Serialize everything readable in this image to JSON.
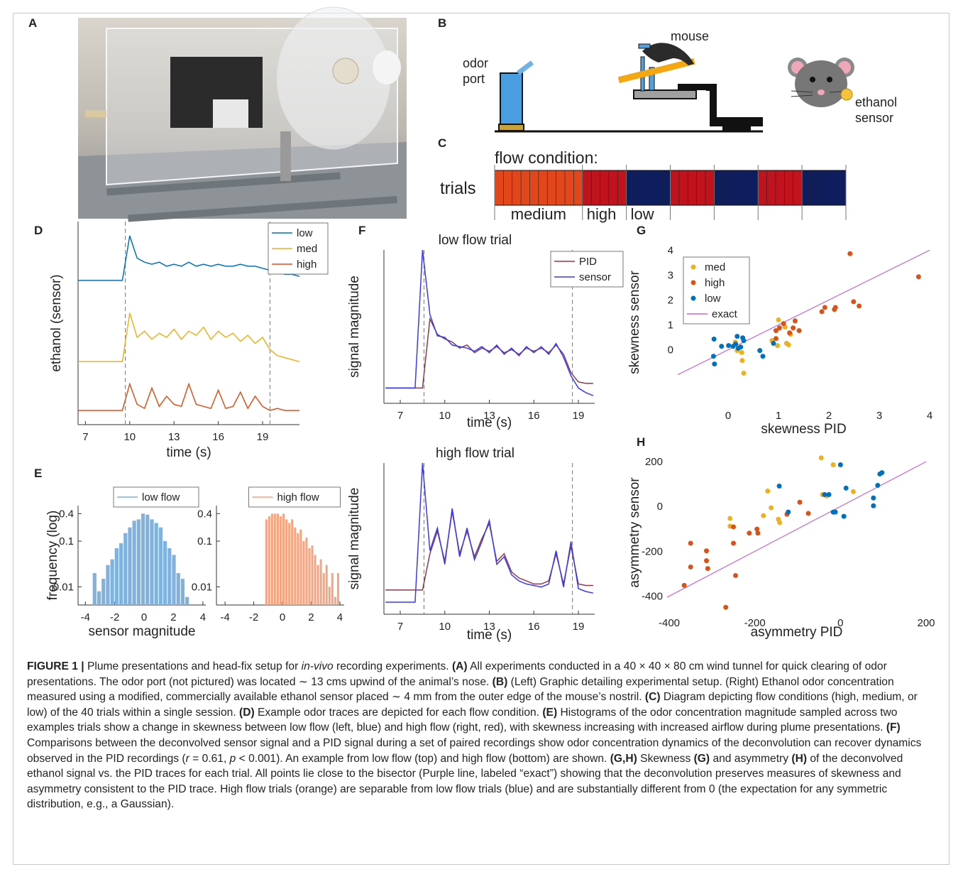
{
  "panel_labels": [
    "A",
    "B",
    "C",
    "D",
    "E",
    "F",
    "G",
    "H"
  ],
  "panel_b": {
    "odor_port": [
      "odor",
      "port"
    ],
    "mouse": "mouse",
    "ethanol_sensor": [
      "ethanol",
      "sensor"
    ]
  },
  "panel_c": {
    "title": "flow condition:",
    "row_label": "trials",
    "blocks": [
      {
        "trials": 10,
        "color": "#e2471b"
      },
      {
        "trials": 5,
        "color": "#c0131e"
      },
      {
        "trials": 5,
        "color": "#0d1d5e"
      },
      {
        "trials": 5,
        "color": "#c0131e"
      },
      {
        "trials": 5,
        "color": "#0d1d5e"
      },
      {
        "trials": 5,
        "color": "#c0131e"
      },
      {
        "trials": 5,
        "color": "#0d1d5e"
      }
    ],
    "labels": [
      {
        "text": "medium",
        "color": "#e0461c"
      },
      {
        "text": "high",
        "color": "#b0121c"
      },
      {
        "text": "low",
        "color": "#1a237e"
      }
    ]
  },
  "chart_data": [
    {
      "type": "line",
      "xlabel": "time (s)",
      "ylabel": "ethanol (sensor)",
      "legend": "upper right",
      "x": [
        6.5,
        7,
        7.5,
        8,
        8.5,
        9,
        9.5,
        10,
        10.5,
        11,
        11.5,
        12,
        12.5,
        13,
        13.5,
        14,
        14.5,
        15,
        15.5,
        16,
        16.5,
        17,
        17.5,
        18,
        18.5,
        19,
        19.5,
        20,
        20.5,
        21,
        21.5
      ],
      "xlim": [
        6.5,
        21.5
      ],
      "xticks": [
        7,
        10,
        13,
        16,
        19
      ],
      "ylim": [
        0,
        1
      ],
      "vlines": [
        9.7,
        19.5
      ],
      "series": [
        {
          "name": "low",
          "color": "#0072bd",
          "values": [
            0.71,
            0.71,
            0.71,
            0.71,
            0.71,
            0.71,
            0.71,
            0.93,
            0.82,
            0.8,
            0.79,
            0.8,
            0.78,
            0.79,
            0.78,
            0.8,
            0.78,
            0.79,
            0.78,
            0.79,
            0.78,
            0.78,
            0.79,
            0.78,
            0.78,
            0.77,
            0.76,
            0.75,
            0.74,
            0.74,
            0.73
          ]
        },
        {
          "name": "med",
          "color": "#edb120",
          "values": [
            0.31,
            0.31,
            0.31,
            0.31,
            0.31,
            0.31,
            0.31,
            0.55,
            0.43,
            0.46,
            0.42,
            0.45,
            0.43,
            0.47,
            0.42,
            0.46,
            0.44,
            0.48,
            0.42,
            0.46,
            0.43,
            0.45,
            0.41,
            0.44,
            0.4,
            0.43,
            0.37,
            0.34,
            0.33,
            0.32,
            0.31
          ]
        },
        {
          "name": "high",
          "color": "#d95319",
          "values": [
            0.07,
            0.07,
            0.07,
            0.07,
            0.07,
            0.07,
            0.07,
            0.2,
            0.1,
            0.08,
            0.18,
            0.09,
            0.14,
            0.1,
            0.09,
            0.2,
            0.1,
            0.09,
            0.08,
            0.17,
            0.08,
            0.09,
            0.16,
            0.08,
            0.14,
            0.09,
            0.07,
            0.08,
            0.07,
            0.07,
            0.07
          ]
        }
      ]
    },
    {
      "type": "histogram",
      "xlabel": "sensor magnitude",
      "ylabel": "frequency (log)",
      "legend": "upper center",
      "bins": [
        -3.5,
        -3.2,
        -2.9,
        -2.6,
        -2.3,
        -2.0,
        -1.7,
        -1.4,
        -1.1,
        -0.8,
        -0.5,
        -0.2,
        0.1,
        0.4,
        0.7,
        1.0,
        1.3,
        1.6,
        1.9,
        2.2,
        2.5,
        2.8,
        3.1
      ],
      "xlim": [
        -4.5,
        4.2
      ],
      "xticks": [
        -4,
        -2,
        0,
        2,
        4
      ],
      "yscale": "log",
      "ylim": [
        0.004,
        0.6
      ],
      "yticks": [
        0.01,
        0.1,
        0.4
      ],
      "series": [
        {
          "name": "low flow",
          "color": "#7fb2de",
          "values": [
            0.02,
            0.008,
            0.015,
            0.03,
            0.04,
            0.07,
            0.09,
            0.15,
            0.2,
            0.28,
            0.3,
            0.4,
            0.38,
            0.3,
            0.25,
            0.2,
            0.1,
            0.07,
            0.05,
            0.02,
            0.015,
            0.006
          ]
        }
      ]
    },
    {
      "type": "histogram",
      "legend": "upper center",
      "bins": [
        -1.2,
        -1.0,
        -0.8,
        -0.6,
        -0.4,
        -0.2,
        0.0,
        0.2,
        0.4,
        0.6,
        0.8,
        1.0,
        1.2,
        1.4,
        1.6,
        1.8,
        2.0,
        2.2,
        2.4,
        2.6,
        2.8,
        3.0,
        3.2,
        3.4,
        3.6,
        3.8,
        4.0
      ],
      "xlim": [
        -4.6,
        4.3
      ],
      "xticks": [
        -4,
        -2,
        0,
        2,
        4
      ],
      "yscale": "log",
      "ylim": [
        0.004,
        0.6
      ],
      "yticks": [
        0.01,
        0.1,
        0.4
      ],
      "series": [
        {
          "name": "high flow",
          "color": "#f4a582",
          "values": [
            0.3,
            0.35,
            0.4,
            0.4,
            0.4,
            0.35,
            0.4,
            0.3,
            0.25,
            0.3,
            0.2,
            0.15,
            0.18,
            0.1,
            0.12,
            0.07,
            0.08,
            0.05,
            0.03,
            0.04,
            0.02,
            0.03,
            0.01,
            0.02,
            0.006,
            0.02
          ]
        }
      ]
    },
    {
      "type": "line",
      "title": "low flow trial",
      "xlabel": "time (s)",
      "ylabel": "signal magnitude",
      "legend": "upper right",
      "x": [
        6,
        6.5,
        7,
        7.5,
        8,
        8.5,
        9,
        9.5,
        10,
        10.5,
        11,
        11.5,
        12,
        12.5,
        13,
        13.5,
        14,
        14.5,
        15,
        15.5,
        16,
        16.5,
        17,
        17.5,
        18,
        18.5,
        19,
        19.5,
        20
      ],
      "xlim": [
        5.9,
        20.1
      ],
      "xticks": [
        7,
        10,
        13,
        16,
        19
      ],
      "ylim": [
        0,
        1
      ],
      "vlines": [
        8.6,
        18.6
      ],
      "series": [
        {
          "name": "PID",
          "color": "#8b3a4a",
          "values": [
            0.1,
            0.1,
            0.1,
            0.1,
            0.1,
            0.1,
            0.55,
            0.45,
            0.42,
            0.4,
            0.36,
            0.38,
            0.33,
            0.36,
            0.34,
            0.37,
            0.33,
            0.35,
            0.32,
            0.36,
            0.34,
            0.36,
            0.33,
            0.38,
            0.32,
            0.2,
            0.14,
            0.13,
            0.13
          ]
        },
        {
          "name": "sensor",
          "color": "#3a3af5",
          "values": [
            0.1,
            0.1,
            0.1,
            0.1,
            0.1,
            1.0,
            0.58,
            0.44,
            0.43,
            0.38,
            0.37,
            0.36,
            0.34,
            0.37,
            0.33,
            0.38,
            0.32,
            0.36,
            0.31,
            0.37,
            0.33,
            0.37,
            0.32,
            0.39,
            0.3,
            0.18,
            0.1,
            0.07,
            0.05
          ]
        }
      ]
    },
    {
      "type": "line",
      "title": "high flow trial",
      "xlabel": "time (s)",
      "ylabel": "signal magnitude",
      "x": [
        6,
        6.5,
        7,
        7.5,
        8,
        8.5,
        9,
        9.5,
        10,
        10.5,
        11,
        11.5,
        12,
        12.5,
        13,
        13.5,
        14,
        14.5,
        15,
        15.5,
        16,
        16.5,
        17,
        17.5,
        18,
        18.5,
        19,
        19.5,
        20
      ],
      "xlim": [
        5.9,
        20.1
      ],
      "xticks": [
        7,
        10,
        13,
        16,
        19
      ],
      "ylim": [
        0,
        1
      ],
      "vlines": [
        8.6,
        18.6
      ],
      "series": [
        {
          "color": "#8b3a4a",
          "values": [
            0.16,
            0.16,
            0.16,
            0.16,
            0.16,
            0.16,
            0.4,
            0.55,
            0.35,
            0.68,
            0.4,
            0.55,
            0.38,
            0.5,
            0.6,
            0.35,
            0.4,
            0.28,
            0.24,
            0.22,
            0.2,
            0.2,
            0.22,
            0.4,
            0.2,
            0.45,
            0.2,
            0.19,
            0.19
          ]
        },
        {
          "color": "#3a3af5",
          "values": [
            0.08,
            0.08,
            0.08,
            0.08,
            0.08,
            1.0,
            0.42,
            0.57,
            0.33,
            0.7,
            0.38,
            0.57,
            0.36,
            0.48,
            0.62,
            0.33,
            0.38,
            0.26,
            0.22,
            0.2,
            0.19,
            0.18,
            0.2,
            0.42,
            0.18,
            0.48,
            0.17,
            0.15,
            0.14
          ]
        }
      ]
    },
    {
      "type": "scatter",
      "xlabel": "skewness PID",
      "ylabel": "skewness sensor",
      "legend": "upper left",
      "xlim": [
        -1,
        4
      ],
      "xticks": [
        0,
        1,
        2,
        3,
        4
      ],
      "ylim": [
        -2.15,
        4.35
      ],
      "yticks": [
        0,
        1,
        2,
        3,
        4
      ],
      "series": [
        {
          "name": "med",
          "color": "#edb120",
          "x": [
            1.0,
            0.87,
            0.98,
            1.2,
            1.24,
            1.16,
            0.18,
            0.27,
            0.28,
            0.31,
            0.14,
            1.13
          ],
          "values": [
            1.2,
            0.37,
            0.17,
            0.2,
            0.62,
            0.26,
            -0.03,
            -0.11,
            -0.43,
            -0.94,
            0.31,
            0.91
          ]
        },
        {
          "name": "high",
          "color": "#d95319",
          "x": [
            0.95,
            0.95,
            1.02,
            1.1,
            1.22,
            1.29,
            1.41,
            1.33,
            1.86,
            1.92,
            2.11,
            2.13,
            2.49,
            2.6,
            2.42,
            3.78
          ],
          "values": [
            0.45,
            0.77,
            0.88,
            1.05,
            0.68,
            0.88,
            0.77,
            1.16,
            1.53,
            1.7,
            1.62,
            1.7,
            1.93,
            1.76,
            3.86,
            2.93
          ]
        },
        {
          "name": "low",
          "color": "#0072bd",
          "x": [
            -0.28,
            -0.29,
            -0.27,
            -0.13,
            0.01,
            0.1,
            0.15,
            0.18,
            0.29,
            0.31,
            0.2,
            0.63,
            0.69,
            0.9,
            0.25
          ],
          "values": [
            0.43,
            -0.26,
            -0.57,
            0.14,
            0.17,
            0.14,
            0.23,
            0.54,
            0.48,
            0.37,
            0.06,
            -0.03,
            -0.26,
            0.26,
            0.11
          ]
        }
      ],
      "reference": {
        "name": "exact",
        "color": "#c76bc9"
      }
    },
    {
      "type": "scatter",
      "xlabel": "asymmetry PID",
      "ylabel": "asymmetry sensor",
      "xlim": [
        -405,
        200
      ],
      "xticks": [
        -400,
        -200,
        0,
        200
      ],
      "ylim": [
        -465,
        232
      ],
      "yticks": [
        -400,
        -200,
        0,
        200
      ],
      "series": [
        {
          "color": "#edb120",
          "x": [
            -45,
            -17,
            -170,
            -162,
            -145,
            -142,
            -258,
            -258,
            -180,
            -32,
            -42,
            30
          ],
          "values": [
            217,
            186,
            69,
            -6,
            -57,
            -72,
            -53,
            -88,
            -41,
            47,
            53,
            66
          ]
        },
        {
          "color": "#d95319",
          "x": [
            -365,
            -350,
            -350,
            -313,
            -313,
            -310,
            -268,
            -250,
            -250,
            -245,
            -213,
            -195,
            -193,
            -125,
            -95,
            -75
          ],
          "values": [
            -352,
            -164,
            -270,
            -198,
            -242,
            -277,
            -450,
            -91,
            -164,
            -308,
            -119,
            -101,
            -119,
            -35,
            19,
            -31
          ]
        },
        {
          "color": "#0072bd",
          "x": [
            -143,
            -122,
            -37,
            -27,
            -17,
            -12,
            0,
            8,
            13,
            77,
            77,
            87,
            92,
            97
          ],
          "values": [
            91,
            -25,
            53,
            53,
            -25,
            -25,
            186,
            -44,
            82,
            38,
            3,
            94,
            145,
            151
          ]
        }
      ],
      "reference": {
        "color": "#c76bc9"
      }
    }
  ],
  "caption": {
    "segments": [
      {
        "text": "FIGURE 1 |",
        "style": "bold"
      },
      {
        "text": " Plume presentations and head-fix setup for "
      },
      {
        "text": "in-vivo",
        "style": "italic"
      },
      {
        "text": " recording experiments. "
      },
      {
        "text": "(A)",
        "style": "bold"
      },
      {
        "text": " All experiments conducted in a 40 × 40 × 80 cm wind tunnel for quick clearing of odor presentations. The odor port (not pictured) was located ∼ 13 cms upwind of the animal’s nose. "
      },
      {
        "text": "(B)",
        "style": "bold"
      },
      {
        "text": " (Left) Graphic detailing experimental setup. (Right) Ethanol odor concentration measured using a modified, commercially available ethanol sensor placed ∼ 4 mm from the outer edge of the mouse’s nostril. "
      },
      {
        "text": "(C)",
        "style": "bold"
      },
      {
        "text": " Diagram depicting flow conditions (high, medium, or low) of the 40 trials within a single session. "
      },
      {
        "text": "(D)",
        "style": "bold"
      },
      {
        "text": " Example odor traces are depicted for each flow condition. "
      },
      {
        "text": "(E)",
        "style": "bold"
      },
      {
        "text": " Histograms of the odor concentration magnitude sampled across two examples trials show a change in skewness between low flow (left, blue) and high flow (right, red), with skewness increasing with increased airflow during plume presentations. "
      },
      {
        "text": "(F)",
        "style": "bold"
      },
      {
        "text": " Comparisons between the deconvolved sensor signal and a PID signal during a set of paired recordings show odor concentration dynamics of the deconvolution can recover dynamics observed in the PID recordings ("
      },
      {
        "text": "r",
        "style": "italic"
      },
      {
        "text": " = 0.61, "
      },
      {
        "text": "p",
        "style": "italic"
      },
      {
        "text": " < 0.001). An example from low flow (top) and high flow (bottom) are shown. "
      },
      {
        "text": "(G,H)",
        "style": "bold"
      },
      {
        "text": " Skewness "
      },
      {
        "text": "(G)",
        "style": "bold"
      },
      {
        "text": " and asymmetry "
      },
      {
        "text": "(H)",
        "style": "bold"
      },
      {
        "text": " of the deconvolved ethanol signal vs. the PID traces for each trial. All points lie close to the bisector (Purple line, labeled “exact”) showing that the deconvolution preserves measures of skewness and asymmetry consistent to the PID trace. High flow trials (orange) are separable from low flow trials (blue) and are substantially different from 0 (the expectation for any symmetric distribution, e.g., a Gaussian)."
      }
    ]
  }
}
